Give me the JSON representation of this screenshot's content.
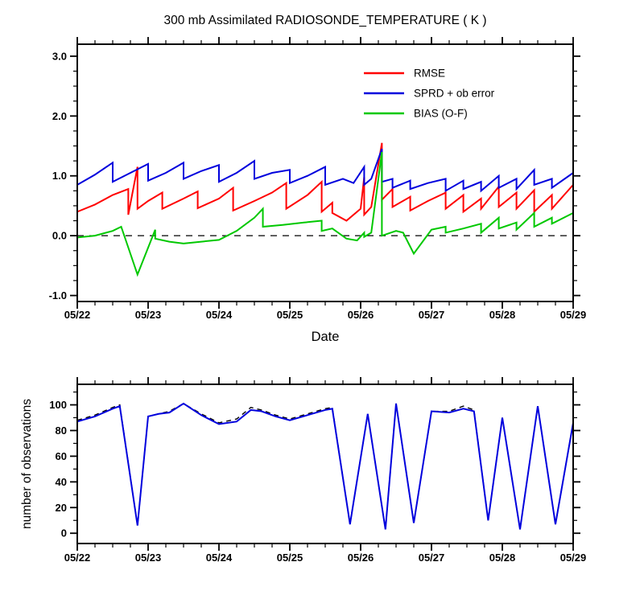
{
  "page": {
    "background": "#ffffff"
  },
  "chart_data": [
    {
      "type": "line",
      "title": "300 mb Assimilated RADIOSONDE_TEMPERATURE ( K )",
      "xlabel": "Date",
      "ylabel": "",
      "xlim": [
        0,
        7
      ],
      "ylim": [
        -1.1,
        3.2
      ],
      "x_major": [
        0,
        1,
        2,
        3,
        4,
        5,
        6,
        7
      ],
      "x_labels": [
        "05/22",
        "05/23",
        "05/24",
        "05/25",
        "05/26",
        "05/27",
        "05/28",
        "05/29"
      ],
      "x_minor_step": 0.25,
      "y_major": [
        -1,
        0,
        1,
        2,
        3
      ],
      "y_labels": [
        "-1.0",
        "0.0",
        "1.0",
        "2.0",
        "3.0"
      ],
      "y_minor_step": 0.25,
      "zero_line": true,
      "legend": true,
      "grid": false,
      "series": [
        {
          "name": "RMSE",
          "color": "#ff0000",
          "width": 2,
          "points": [
            [
              0,
              0.4
            ],
            [
              0.25,
              0.52
            ],
            [
              0.5,
              0.68
            ],
            [
              0.72,
              0.78
            ],
            [
              0.72,
              0.35
            ],
            [
              0.85,
              1.15
            ],
            [
              0.85,
              0.45
            ],
            [
              1.0,
              0.58
            ],
            [
              1.2,
              0.72
            ],
            [
              1.2,
              0.45
            ],
            [
              1.5,
              0.62
            ],
            [
              1.7,
              0.74
            ],
            [
              1.7,
              0.46
            ],
            [
              2.0,
              0.62
            ],
            [
              2.2,
              0.8
            ],
            [
              2.2,
              0.42
            ],
            [
              2.5,
              0.58
            ],
            [
              2.75,
              0.72
            ],
            [
              2.95,
              0.88
            ],
            [
              2.95,
              0.45
            ],
            [
              3.25,
              0.68
            ],
            [
              3.45,
              0.9
            ],
            [
              3.45,
              0.4
            ],
            [
              3.6,
              0.55
            ],
            [
              3.6,
              0.38
            ],
            [
              3.8,
              0.25
            ],
            [
              4.0,
              0.45
            ],
            [
              4.05,
              0.98
            ],
            [
              4.05,
              0.35
            ],
            [
              4.15,
              0.48
            ],
            [
              4.3,
              1.55
            ],
            [
              4.3,
              0.6
            ],
            [
              4.45,
              0.78
            ],
            [
              4.45,
              0.48
            ],
            [
              4.7,
              0.65
            ],
            [
              4.7,
              0.42
            ],
            [
              4.95,
              0.58
            ],
            [
              5.2,
              0.72
            ],
            [
              5.2,
              0.45
            ],
            [
              5.45,
              0.68
            ],
            [
              5.45,
              0.4
            ],
            [
              5.7,
              0.62
            ],
            [
              5.7,
              0.45
            ],
            [
              5.95,
              0.82
            ],
            [
              5.95,
              0.48
            ],
            [
              6.2,
              0.72
            ],
            [
              6.2,
              0.45
            ],
            [
              6.45,
              0.76
            ],
            [
              6.45,
              0.4
            ],
            [
              6.7,
              0.68
            ],
            [
              6.7,
              0.45
            ],
            [
              7.0,
              0.85
            ]
          ]
        },
        {
          "name": "SPRD + ob error",
          "color": "#0000dd",
          "width": 2,
          "points": [
            [
              0,
              0.85
            ],
            [
              0.25,
              1.02
            ],
            [
              0.5,
              1.22
            ],
            [
              0.5,
              0.9
            ],
            [
              0.75,
              1.05
            ],
            [
              1.0,
              1.2
            ],
            [
              1.0,
              0.92
            ],
            [
              1.25,
              1.05
            ],
            [
              1.5,
              1.22
            ],
            [
              1.5,
              0.95
            ],
            [
              1.75,
              1.08
            ],
            [
              2.0,
              1.18
            ],
            [
              2.0,
              0.9
            ],
            [
              2.25,
              1.05
            ],
            [
              2.5,
              1.25
            ],
            [
              2.5,
              0.95
            ],
            [
              2.75,
              1.05
            ],
            [
              3.0,
              1.1
            ],
            [
              3.0,
              0.88
            ],
            [
              3.25,
              1.0
            ],
            [
              3.5,
              1.15
            ],
            [
              3.5,
              0.85
            ],
            [
              3.75,
              0.95
            ],
            [
              3.9,
              0.88
            ],
            [
              4.05,
              1.15
            ],
            [
              4.05,
              0.85
            ],
            [
              4.15,
              0.95
            ],
            [
              4.3,
              1.45
            ],
            [
              4.3,
              0.9
            ],
            [
              4.45,
              0.95
            ],
            [
              4.45,
              0.8
            ],
            [
              4.7,
              0.92
            ],
            [
              4.7,
              0.78
            ],
            [
              4.95,
              0.88
            ],
            [
              5.2,
              0.95
            ],
            [
              5.2,
              0.75
            ],
            [
              5.45,
              0.92
            ],
            [
              5.45,
              0.78
            ],
            [
              5.7,
              0.9
            ],
            [
              5.7,
              0.75
            ],
            [
              5.95,
              1.0
            ],
            [
              5.95,
              0.8
            ],
            [
              6.2,
              0.95
            ],
            [
              6.2,
              0.78
            ],
            [
              6.45,
              1.1
            ],
            [
              6.45,
              0.85
            ],
            [
              6.7,
              0.95
            ],
            [
              6.7,
              0.8
            ],
            [
              7.0,
              1.05
            ]
          ]
        },
        {
          "name": "BIAS (O-F)",
          "color": "#00c800",
          "width": 2,
          "points": [
            [
              0,
              -0.03
            ],
            [
              0.25,
              0.0
            ],
            [
              0.5,
              0.08
            ],
            [
              0.62,
              0.15
            ],
            [
              0.85,
              -0.65
            ],
            [
              1.1,
              0.1
            ],
            [
              1.1,
              -0.05
            ],
            [
              1.3,
              -0.1
            ],
            [
              1.5,
              -0.13
            ],
            [
              1.75,
              -0.1
            ],
            [
              2.0,
              -0.07
            ],
            [
              2.25,
              0.08
            ],
            [
              2.5,
              0.3
            ],
            [
              2.62,
              0.45
            ],
            [
              2.62,
              0.15
            ],
            [
              2.9,
              0.18
            ],
            [
              3.2,
              0.22
            ],
            [
              3.45,
              0.25
            ],
            [
              3.45,
              0.08
            ],
            [
              3.6,
              0.12
            ],
            [
              3.8,
              -0.05
            ],
            [
              3.95,
              -0.08
            ],
            [
              4.05,
              0.05
            ],
            [
              4.05,
              -0.02
            ],
            [
              4.15,
              0.05
            ],
            [
              4.3,
              1.4
            ],
            [
              4.3,
              0.0
            ],
            [
              4.5,
              0.08
            ],
            [
              4.6,
              0.05
            ],
            [
              4.75,
              -0.3
            ],
            [
              5.0,
              0.1
            ],
            [
              5.2,
              0.15
            ],
            [
              5.2,
              0.05
            ],
            [
              5.45,
              0.12
            ],
            [
              5.7,
              0.2
            ],
            [
              5.7,
              0.05
            ],
            [
              5.95,
              0.3
            ],
            [
              5.95,
              0.12
            ],
            [
              6.2,
              0.22
            ],
            [
              6.2,
              0.1
            ],
            [
              6.45,
              0.38
            ],
            [
              6.45,
              0.15
            ],
            [
              6.7,
              0.3
            ],
            [
              6.7,
              0.2
            ],
            [
              7.0,
              0.38
            ]
          ]
        }
      ]
    },
    {
      "type": "line",
      "title": "",
      "xlabel": "",
      "ylabel": "number of observations",
      "xlim": [
        0,
        7
      ],
      "ylim": [
        -8,
        116
      ],
      "x_major": [
        0,
        1,
        2,
        3,
        4,
        5,
        6,
        7
      ],
      "x_labels": [
        "05/22",
        "05/23",
        "05/24",
        "05/25",
        "05/26",
        "05/27",
        "05/28",
        "05/29"
      ],
      "x_minor_step": 0.25,
      "y_major": [
        0,
        20,
        40,
        60,
        80,
        100
      ],
      "y_labels": [
        "0",
        "20",
        "40",
        "60",
        "80",
        "100"
      ],
      "y_minor_step": 10,
      "zero_line": false,
      "legend": false,
      "grid": false,
      "series": [
        {
          "name": "observations dashed",
          "color": "#000000",
          "width": 1.4,
          "dash": "6,5",
          "points": [
            [
              0,
              88
            ],
            [
              0.25,
              92
            ],
            [
              0.5,
              98
            ],
            [
              0.6,
              100
            ],
            [
              0.85,
              6
            ],
            [
              1.0,
              91
            ],
            [
              1.15,
              93
            ],
            [
              1.3,
              95
            ],
            [
              1.5,
              101
            ],
            [
              1.75,
              93
            ],
            [
              2.0,
              86
            ],
            [
              2.25,
              89
            ],
            [
              2.45,
              98
            ],
            [
              2.6,
              96
            ],
            [
              2.8,
              92
            ],
            [
              3.0,
              89
            ],
            [
              3.25,
              93
            ],
            [
              3.5,
              97
            ],
            [
              3.6,
              98
            ],
            [
              3.85,
              7
            ],
            [
              4.1,
              93
            ],
            [
              4.35,
              3
            ],
            [
              4.5,
              101
            ],
            [
              4.75,
              8
            ],
            [
              5.0,
              95
            ],
            [
              5.25,
              95
            ],
            [
              5.45,
              99
            ],
            [
              5.6,
              96
            ],
            [
              5.8,
              10
            ],
            [
              6.0,
              90
            ],
            [
              6.25,
              3
            ],
            [
              6.5,
              99
            ],
            [
              6.75,
              7
            ],
            [
              7.0,
              86
            ]
          ]
        },
        {
          "name": "observations solid",
          "color": "#0000dd",
          "width": 2,
          "points": [
            [
              0,
              87
            ],
            [
              0.25,
              91
            ],
            [
              0.5,
              97
            ],
            [
              0.6,
              99
            ],
            [
              0.85,
              6
            ],
            [
              1.0,
              91
            ],
            [
              1.15,
              93
            ],
            [
              1.3,
              94
            ],
            [
              1.5,
              101
            ],
            [
              1.75,
              92
            ],
            [
              2.0,
              85
            ],
            [
              2.25,
              87
            ],
            [
              2.45,
              96
            ],
            [
              2.6,
              95
            ],
            [
              2.8,
              91
            ],
            [
              3.0,
              88
            ],
            [
              3.25,
              92
            ],
            [
              3.5,
              96
            ],
            [
              3.6,
              97
            ],
            [
              3.85,
              7
            ],
            [
              4.1,
              93
            ],
            [
              4.35,
              3
            ],
            [
              4.5,
              101
            ],
            [
              4.75,
              8
            ],
            [
              5.0,
              95
            ],
            [
              5.25,
              94
            ],
            [
              5.45,
              97
            ],
            [
              5.6,
              95
            ],
            [
              5.8,
              10
            ],
            [
              6.0,
              90
            ],
            [
              6.25,
              3
            ],
            [
              6.5,
              99
            ],
            [
              6.75,
              7
            ],
            [
              7.0,
              86
            ]
          ]
        }
      ]
    }
  ]
}
